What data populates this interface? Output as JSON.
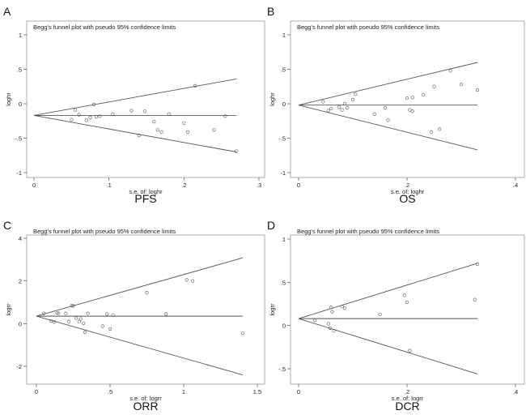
{
  "chart_data": [
    {
      "letter": "A",
      "type": "scatter",
      "title": "Begg's funnel plot with pseudo 95% confidence limits",
      "ylabel": "loghr",
      "xlabel": "s.e. of: loghr",
      "caption": "PFS",
      "xlim": [
        0,
        0.3
      ],
      "ylim": [
        -1,
        1
      ],
      "xticks": [
        {
          "v": 0,
          "label": "0"
        },
        {
          "v": 0.1,
          "label": ".1"
        },
        {
          "v": 0.2,
          "label": ".2"
        },
        {
          "v": 0.3,
          "label": ".3"
        }
      ],
      "yticks": [
        {
          "v": -1,
          "label": "-1"
        },
        {
          "v": -0.5,
          "label": "-.5"
        },
        {
          "v": 0,
          "label": "0"
        },
        {
          "v": 0.5,
          "label": ".5"
        },
        {
          "v": 1,
          "label": "1"
        }
      ],
      "pooled": -0.17,
      "xmax_line": 0.27,
      "ci_upper_end": 0.36,
      "ci_lower_end": -0.7,
      "hline_end": 0.27,
      "points": [
        [
          0.05,
          -0.23
        ],
        [
          0.055,
          -0.09
        ],
        [
          0.06,
          -0.16
        ],
        [
          0.07,
          -0.24
        ],
        [
          0.075,
          -0.2
        ],
        [
          0.08,
          -0.01
        ],
        [
          0.083,
          -0.19
        ],
        [
          0.088,
          -0.18
        ],
        [
          0.105,
          -0.15
        ],
        [
          0.13,
          -0.1
        ],
        [
          0.14,
          -0.46
        ],
        [
          0.148,
          -0.11
        ],
        [
          0.16,
          -0.26
        ],
        [
          0.165,
          -0.38
        ],
        [
          0.17,
          -0.41
        ],
        [
          0.18,
          -0.15
        ],
        [
          0.2,
          -0.28
        ],
        [
          0.205,
          -0.41
        ],
        [
          0.215,
          0.26
        ],
        [
          0.24,
          -0.38
        ],
        [
          0.255,
          -0.18
        ],
        [
          0.27,
          -0.69
        ]
      ]
    },
    {
      "letter": "B",
      "type": "scatter",
      "title": "Begg's funnel plot with pseudo 95% confidence limits",
      "ylabel": "loghr",
      "xlabel": "s.e. of: loghr",
      "caption": "OS",
      "xlim": [
        0,
        0.4
      ],
      "ylim": [
        -1,
        1
      ],
      "xticks": [
        {
          "v": 0,
          "label": "0"
        },
        {
          "v": 0.2,
          "label": ".2"
        },
        {
          "v": 0.4,
          "label": ".4"
        }
      ],
      "yticks": [
        {
          "v": -1,
          "label": "-1"
        },
        {
          "v": -0.5,
          "label": "-.5"
        },
        {
          "v": 0,
          "label": "0"
        },
        {
          "v": 0.5,
          "label": ".5"
        },
        {
          "v": 1,
          "label": "1"
        }
      ],
      "pooled": -0.02,
      "xmax_line": 0.33,
      "ci_upper_end": 0.6,
      "ci_lower_end": -0.67,
      "hline_end": 0.33,
      "points": [
        [
          0.045,
          0.03
        ],
        [
          0.055,
          -0.1
        ],
        [
          0.06,
          -0.07
        ],
        [
          0.075,
          -0.05
        ],
        [
          0.08,
          -0.09
        ],
        [
          0.085,
          0.0
        ],
        [
          0.09,
          -0.06
        ],
        [
          0.1,
          0.06
        ],
        [
          0.105,
          0.14
        ],
        [
          0.14,
          -0.15
        ],
        [
          0.16,
          -0.06
        ],
        [
          0.165,
          -0.24
        ],
        [
          0.2,
          0.08
        ],
        [
          0.205,
          -0.09
        ],
        [
          0.21,
          0.09
        ],
        [
          0.21,
          -0.11
        ],
        [
          0.23,
          0.13
        ],
        [
          0.245,
          -0.41
        ],
        [
          0.25,
          0.25
        ],
        [
          0.26,
          -0.37
        ],
        [
          0.28,
          0.48
        ],
        [
          0.3,
          0.28
        ],
        [
          0.33,
          0.2
        ]
      ]
    },
    {
      "letter": "C",
      "type": "scatter",
      "title": "Begg's funnel plot with pseudo 95% confidence limits",
      "ylabel": "logrr",
      "xlabel": "s.e. of: logrr",
      "caption": "ORR",
      "xlim": [
        0,
        1.5
      ],
      "ylim": [
        -2,
        4
      ],
      "xticks": [
        {
          "v": 0,
          "label": "0"
        },
        {
          "v": 0.5,
          "label": ".5"
        },
        {
          "v": 1,
          "label": "1"
        },
        {
          "v": 1.5,
          "label": "1.5"
        }
      ],
      "yticks": [
        {
          "v": -2,
          "label": "-2"
        },
        {
          "v": 0,
          "label": "0"
        },
        {
          "v": 2,
          "label": "2"
        },
        {
          "v": 4,
          "label": "4"
        }
      ],
      "pooled": 0.35,
      "xmax_line": 1.4,
      "ci_upper_end": 3.08,
      "ci_lower_end": -2.4,
      "hline_end": 1.4,
      "points": [
        [
          0.05,
          0.48
        ],
        [
          0.1,
          0.12
        ],
        [
          0.12,
          0.08
        ],
        [
          0.14,
          0.5
        ],
        [
          0.15,
          0.48
        ],
        [
          0.2,
          0.48
        ],
        [
          0.22,
          0.1
        ],
        [
          0.24,
          0.85
        ],
        [
          0.25,
          0.83
        ],
        [
          0.27,
          0.26
        ],
        [
          0.29,
          0.1
        ],
        [
          0.3,
          0.22
        ],
        [
          0.32,
          0.02
        ],
        [
          0.33,
          -0.4
        ],
        [
          0.35,
          0.48
        ],
        [
          0.45,
          -0.12
        ],
        [
          0.48,
          0.45
        ],
        [
          0.5,
          -0.25
        ],
        [
          0.52,
          0.4
        ],
        [
          0.75,
          1.45
        ],
        [
          0.88,
          0.45
        ],
        [
          1.02,
          2.05
        ],
        [
          1.06,
          2.0
        ],
        [
          1.4,
          -0.45
        ]
      ]
    },
    {
      "letter": "D",
      "type": "scatter",
      "title": "Begg's funnel plot with pseudo 95% confidence limits",
      "ylabel": "logrr",
      "xlabel": "s.e. of: logrr",
      "caption": "DCR",
      "xlim": [
        0,
        0.4
      ],
      "ylim": [
        -0.5,
        1
      ],
      "xticks": [
        {
          "v": 0,
          "label": "0"
        },
        {
          "v": 0.2,
          "label": ".2"
        },
        {
          "v": 0.4,
          "label": ".4"
        }
      ],
      "yticks": [
        {
          "v": -0.5,
          "label": "-.5"
        },
        {
          "v": 0,
          "label": "0"
        },
        {
          "v": 0.5,
          "label": ".5"
        },
        {
          "v": 1,
          "label": "1"
        }
      ],
      "pooled": 0.08,
      "xmax_line": 0.33,
      "ci_upper_end": 0.72,
      "ci_lower_end": -0.56,
      "hline_end": 0.33,
      "points": [
        [
          0.03,
          0.06
        ],
        [
          0.055,
          0.02
        ],
        [
          0.058,
          -0.03
        ],
        [
          0.06,
          0.21
        ],
        [
          0.062,
          0.16
        ],
        [
          0.065,
          -0.06
        ],
        [
          0.08,
          0.22
        ],
        [
          0.085,
          0.2
        ],
        [
          0.15,
          0.13
        ],
        [
          0.195,
          0.35
        ],
        [
          0.2,
          0.27
        ],
        [
          0.205,
          -0.29
        ],
        [
          0.325,
          0.3
        ],
        [
          0.33,
          0.71
        ]
      ]
    }
  ]
}
